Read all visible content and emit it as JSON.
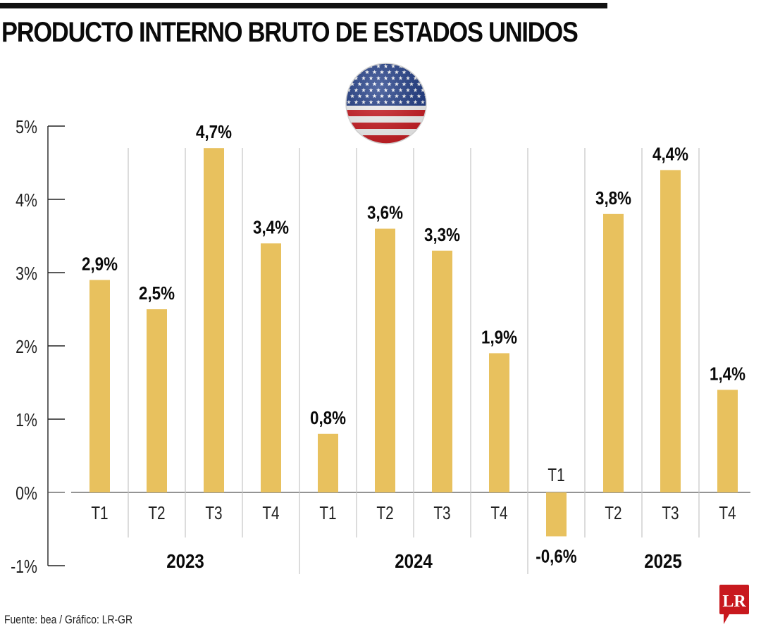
{
  "header": {
    "title": "PRODUCTO INTERNO BRUTO DE ESTADOS UNIDOS"
  },
  "flag_icon": "us-flag-icon",
  "footer": {
    "source": "Fuente: bea / Gráfico: LR-GR",
    "logo_text": "LR",
    "logo_color": "#C8191E"
  },
  "chart_data": {
    "type": "bar",
    "title": "PRODUCTO INTERNO BRUTO DE ESTADOS UNIDOS",
    "xlabel": "",
    "ylabel": "",
    "ylim": [
      -1,
      5
    ],
    "yticks": [
      5,
      4,
      3,
      2,
      1,
      0,
      -1
    ],
    "ytick_labels": [
      "5%",
      "4%",
      "3%",
      "2%",
      "1%",
      "0%",
      "-1%"
    ],
    "grid": false,
    "legend": "none",
    "bar_color": "#E8C15E",
    "groups": [
      {
        "year": "2023",
        "quarters": [
          "T1",
          "T2",
          "T3",
          "T4"
        ]
      },
      {
        "year": "2024",
        "quarters": [
          "T1",
          "T2",
          "T3",
          "T4"
        ]
      },
      {
        "year": "2025",
        "quarters": [
          "T1",
          "T2",
          "T3",
          "T4"
        ]
      }
    ],
    "categories": [
      "T1",
      "T2",
      "T3",
      "T4",
      "T1",
      "T2",
      "T3",
      "T4",
      "T1",
      "T2",
      "T3",
      "T4"
    ],
    "values": [
      2.9,
      2.5,
      4.7,
      3.4,
      0.8,
      3.6,
      3.3,
      1.9,
      -0.6,
      3.8,
      4.4,
      1.4
    ],
    "value_labels": [
      "2,9%",
      "2,5%",
      "4,7%",
      "3,4%",
      "0,8%",
      "3,6%",
      "3,3%",
      "1,9%",
      "-0,6%",
      "3,8%",
      "4,4%",
      "1,4%"
    ]
  }
}
